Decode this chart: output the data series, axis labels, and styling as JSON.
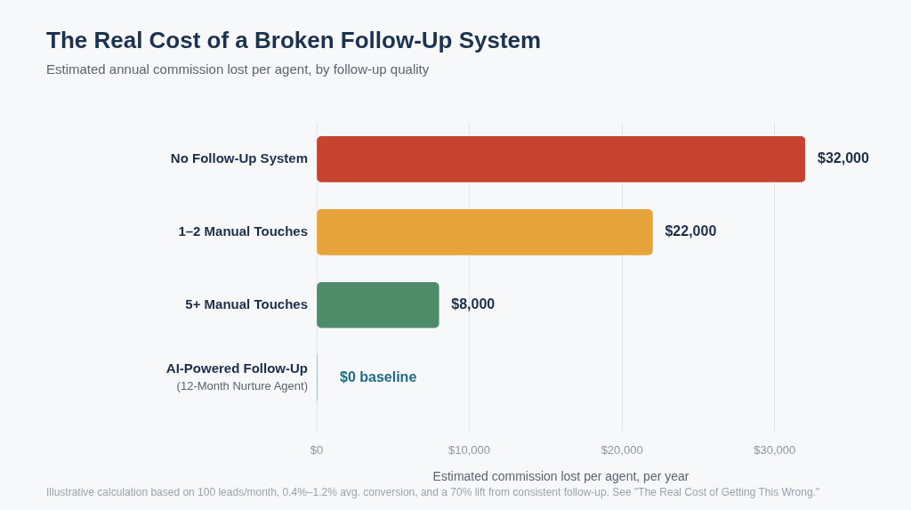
{
  "chart_data": {
    "type": "bar",
    "orientation": "horizontal",
    "title": "The Real Cost of a Broken Follow-Up System",
    "subtitle": "Estimated annual commission lost per agent, by follow-up quality",
    "xlabel": "Estimated commission lost per agent, per year",
    "categories": [
      "No Follow-Up System",
      "1–2 Manual Touches",
      "5+ Manual Touches",
      "AI-Powered Follow-Up\n(12-Month Nurture Agent)"
    ],
    "values": [
      32000,
      22000,
      8000,
      0
    ],
    "colors": [
      "#c8432f",
      "#e8a43c",
      "#4d8b69",
      "#1e6b8a"
    ],
    "value_labels": [
      "$32,000",
      "$22,000",
      "$8,000",
      "$0 baseline"
    ],
    "xlim": [
      0,
      32000
    ],
    "xticks": [
      {
        "value": 0,
        "label": "$0"
      },
      {
        "value": 10000,
        "label": "$10,000"
      },
      {
        "value": 20000,
        "label": "$20,000"
      },
      {
        "value": 30000,
        "label": "$30,000"
      }
    ],
    "grid": "x",
    "annotations": [
      "Illustrative calculation based on 100 leads/month, 0.4%–1.2% avg. conversion, and a 70% lift from consistent follow-up. See \"The Real Cost of Getting This Wrong.\""
    ]
  }
}
